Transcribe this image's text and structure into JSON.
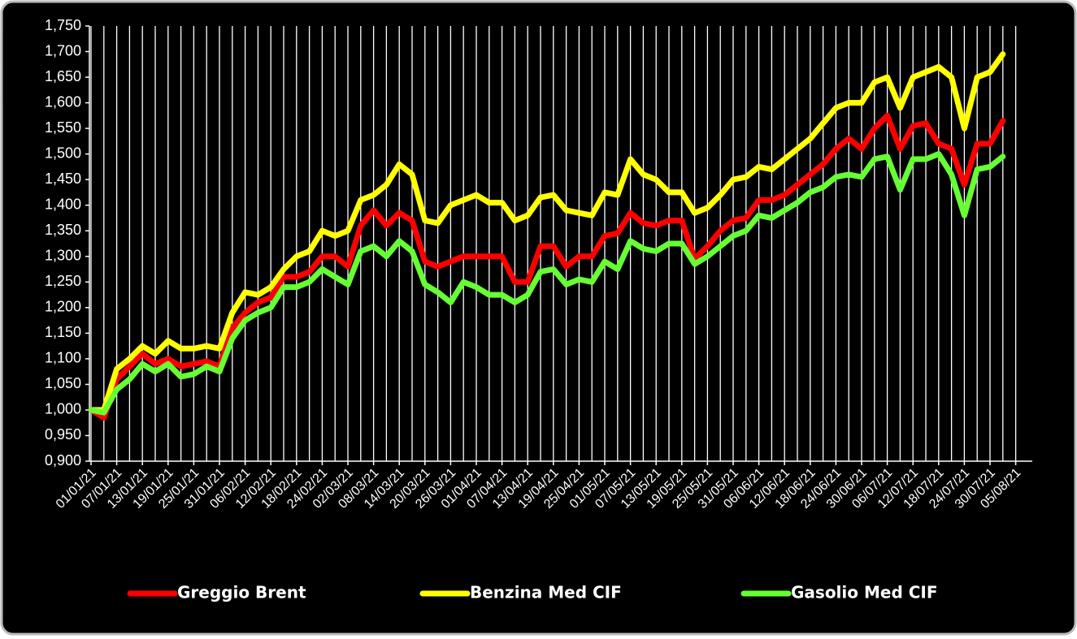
{
  "chart_data": {
    "type": "line",
    "categories": [
      "01/01/21",
      null,
      "07/01/21",
      null,
      "13/01/21",
      null,
      "19/01/21",
      null,
      "25/01/21",
      null,
      "31/01/21",
      null,
      "06/02/21",
      null,
      "12/02/21",
      null,
      "18/02/21",
      null,
      "24/02/21",
      null,
      "02/03/21",
      null,
      "08/03/21",
      null,
      "14/03/21",
      null,
      "20/03/21",
      null,
      "26/03/21",
      null,
      "01/04/21",
      null,
      "07/04/21",
      null,
      "13/04/21",
      null,
      "19/04/21",
      null,
      "25/04/21",
      null,
      "01/05/21",
      null,
      "07/05/21",
      null,
      "13/05/21",
      null,
      "19/05/21",
      null,
      "25/05/21",
      null,
      "31/05/21",
      null,
      "06/06/21",
      null,
      "12/06/21",
      null,
      "18/06/21",
      null,
      "24/06/21",
      null,
      "30/06/21",
      null,
      "06/07/21",
      null,
      "12/07/21",
      null,
      "18/07/21",
      null,
      "24/07/21",
      null,
      "30/07/21",
      null,
      "05/08/21"
    ],
    "series": [
      {
        "name": "Greggio Brent",
        "color": "#ff0000",
        "values": [
          1.0,
          0.985,
          1.06,
          1.085,
          1.11,
          1.09,
          1.1,
          1.085,
          1.09,
          1.095,
          1.085,
          1.16,
          1.19,
          1.21,
          1.22,
          1.26,
          1.26,
          1.27,
          1.3,
          1.3,
          1.28,
          1.36,
          1.39,
          1.36,
          1.385,
          1.37,
          1.29,
          1.28,
          1.29,
          1.3,
          1.3,
          1.3,
          1.3,
          1.25,
          1.25,
          1.32,
          1.32,
          1.28,
          1.3,
          1.3,
          1.34,
          1.345,
          1.385,
          1.365,
          1.36,
          1.37,
          1.37,
          1.295,
          1.32,
          1.35,
          1.37,
          1.375,
          1.41,
          1.41,
          1.42,
          1.44,
          1.46,
          1.48,
          1.51,
          1.53,
          1.51,
          1.55,
          1.575,
          1.51,
          1.555,
          1.56,
          1.52,
          1.51,
          1.44,
          1.52,
          1.52,
          1.565,
          null
        ]
      },
      {
        "name": "Benzina Med CIF",
        "color": "#ffff00",
        "values": [
          1.0,
          1.0,
          1.08,
          1.1,
          1.125,
          1.11,
          1.135,
          1.12,
          1.12,
          1.125,
          1.12,
          1.19,
          1.23,
          1.225,
          1.24,
          1.275,
          1.3,
          1.31,
          1.35,
          1.34,
          1.35,
          1.41,
          1.42,
          1.44,
          1.48,
          1.46,
          1.37,
          1.365,
          1.4,
          1.41,
          1.42,
          1.405,
          1.405,
          1.37,
          1.38,
          1.415,
          1.42,
          1.39,
          1.385,
          1.38,
          1.425,
          1.42,
          1.49,
          1.46,
          1.45,
          1.425,
          1.425,
          1.385,
          1.395,
          1.42,
          1.45,
          1.455,
          1.475,
          1.47,
          1.49,
          1.51,
          1.53,
          1.56,
          1.59,
          1.6,
          1.6,
          1.64,
          1.65,
          1.59,
          1.65,
          1.66,
          1.67,
          1.65,
          1.55,
          1.65,
          1.66,
          1.695,
          null
        ]
      },
      {
        "name": "Gasolio Med CIF",
        "color": "#66ff33",
        "values": [
          1.0,
          0.995,
          1.04,
          1.06,
          1.09,
          1.075,
          1.09,
          1.065,
          1.07,
          1.085,
          1.075,
          1.14,
          1.175,
          1.19,
          1.2,
          1.24,
          1.24,
          1.25,
          1.275,
          1.26,
          1.245,
          1.31,
          1.32,
          1.3,
          1.33,
          1.31,
          1.245,
          1.23,
          1.21,
          1.25,
          1.24,
          1.225,
          1.225,
          1.21,
          1.225,
          1.27,
          1.275,
          1.245,
          1.255,
          1.25,
          1.29,
          1.275,
          1.33,
          1.315,
          1.31,
          1.325,
          1.325,
          1.285,
          1.3,
          1.32,
          1.34,
          1.35,
          1.38,
          1.375,
          1.39,
          1.405,
          1.425,
          1.435,
          1.455,
          1.46,
          1.455,
          1.49,
          1.495,
          1.43,
          1.49,
          1.49,
          1.5,
          1.46,
          1.38,
          1.47,
          1.475,
          1.495,
          null
        ]
      }
    ],
    "ylim": [
      0.9,
      1.75
    ],
    "yticks": [
      {
        "value": 0.9,
        "label": "0,900"
      },
      {
        "value": 0.95,
        "label": "0,950"
      },
      {
        "value": 1.0,
        "label": "1,000"
      },
      {
        "value": 1.05,
        "label": "1,050"
      },
      {
        "value": 1.1,
        "label": "1,100"
      },
      {
        "value": 1.15,
        "label": "1,150"
      },
      {
        "value": 1.2,
        "label": "1,200"
      },
      {
        "value": 1.25,
        "label": "1,250"
      },
      {
        "value": 1.3,
        "label": "1,300"
      },
      {
        "value": 1.35,
        "label": "1,350"
      },
      {
        "value": 1.4,
        "label": "1,400"
      },
      {
        "value": 1.45,
        "label": "1,450"
      },
      {
        "value": 1.5,
        "label": "1,500"
      },
      {
        "value": 1.55,
        "label": "1,550"
      },
      {
        "value": 1.6,
        "label": "1,600"
      },
      {
        "value": 1.65,
        "label": "1,650"
      },
      {
        "value": 1.7,
        "label": "1,700"
      },
      {
        "value": 1.75,
        "label": "1,750"
      }
    ],
    "x_grid": true,
    "legend": "bottom"
  }
}
